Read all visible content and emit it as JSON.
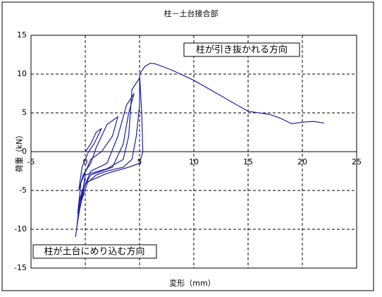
{
  "chart_data": {
    "type": "line",
    "title": "柱－土台接合部",
    "x_label": "変形（mm）",
    "y_label": "荷重（kN）",
    "annotations": [
      "柱が引き抜かれる方向",
      "柱が土台にめり込む方向"
    ],
    "x": [
      0,
      0.5,
      1,
      1.5,
      0.8,
      0.3,
      -0.3,
      -0.6,
      -0.2,
      0.5,
      1,
      2,
      3,
      2.5,
      1.5,
      0.5,
      -0.4,
      -0.7,
      -0.3,
      0.5,
      1.5,
      2.5,
      3.5,
      4,
      4.5,
      3.8,
      3,
      2,
      0.5,
      -0.5,
      -0.8,
      -0.5,
      0.2,
      1,
      2,
      3.5,
      4.3,
      4.7,
      5,
      5,
      4.3,
      4,
      3.5,
      2,
      0,
      -0.7,
      -0.9,
      -0.6,
      0,
      2,
      4,
      5,
      5.3,
      5.2,
      5,
      5.5,
      6,
      6.5,
      8,
      10,
      12,
      14,
      15,
      16,
      17,
      18,
      19,
      20,
      21,
      22
    ],
    "values": [
      0,
      1,
      2.5,
      3,
      1,
      0,
      -2,
      -5,
      -3,
      -1.5,
      0.5,
      3.5,
      4.5,
      2,
      0,
      -1,
      -4,
      -8,
      -5,
      -3,
      -2.5,
      -2,
      1,
      5,
      7.5,
      6,
      2,
      -1.5,
      -2.5,
      -6,
      -10,
      -7,
      -4,
      -3,
      -2.5,
      -2,
      -1,
      2,
      6,
      9.5,
      8,
      2,
      -1,
      -2.2,
      -3,
      -9,
      -11,
      -8,
      -4,
      -2.8,
      -2,
      -1.5,
      0,
      5,
      10,
      11,
      11.4,
      11.3,
      10.5,
      9.2,
      7.6,
      6,
      5.2,
      5,
      4.8,
      4.3,
      3.6,
      3.8,
      3.9,
      3.7
    ],
    "color": "#1f1fa0",
    "xlim": [
      -5,
      25
    ],
    "xticks": [
      -5,
      0,
      5,
      10,
      15,
      20,
      25
    ],
    "ylim": [
      -15,
      15
    ],
    "yticks": [
      -15,
      -10,
      -5,
      0,
      5,
      10,
      15
    ],
    "grid": true
  }
}
